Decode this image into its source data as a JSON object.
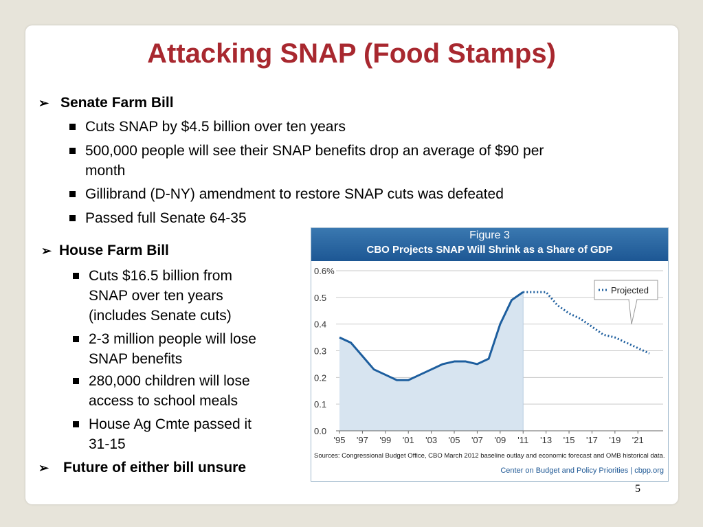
{
  "slide": {
    "title": "Attacking SNAP (Food Stamps)",
    "page_number": "5",
    "senate": {
      "heading": "Senate Farm Bill",
      "items": [
        "Cuts SNAP by $4.5 billion over ten years",
        "500,000 people will see their SNAP benefits drop an average of $90 per",
        "month",
        "Gillibrand (D-NY) amendment to restore SNAP cuts was defeated",
        "Passed full Senate 64-35"
      ]
    },
    "house": {
      "heading": "House Farm Bill",
      "items": [
        [
          "Cuts $16.5 billion from",
          "SNAP over ten years",
          "(includes Senate cuts)"
        ],
        [
          "2-3 million people will lose",
          "SNAP benefits"
        ],
        [
          "280,000 children will lose",
          "access to school meals"
        ],
        [
          "House Ag Cmte passed it",
          "31-15"
        ]
      ]
    },
    "future": "Future of either bill unsure"
  },
  "figure": {
    "label": "Figure 3",
    "source": "Sources: Congressional Budget Office, CBO March 2012 baseline outlay and economic forecast and OMB historical data.",
    "credit": "Center on Budget and Policy Priorities | cbpp.org"
  },
  "chart_data": {
    "type": "line",
    "title": "CBO Projects SNAP Will Shrink as a Share of GDP",
    "ylim": [
      0,
      0.6
    ],
    "yticks": [
      "0.6%",
      "0.5",
      "0.4",
      "0.3",
      "0.2",
      "0.1",
      "0.0"
    ],
    "xticks": [
      "'95",
      "'97",
      "'99",
      "'01",
      "'03",
      "'05",
      "'07",
      "'09",
      "'11",
      "'13",
      "'15",
      "'17",
      "'19",
      "'21"
    ],
    "legend": "Projected",
    "series": [
      {
        "style": "actual",
        "x": [
          1995,
          1996,
          1997,
          1998,
          1999,
          2000,
          2001,
          2002,
          2003,
          2004,
          2005,
          2006,
          2007,
          2008,
          2009,
          2010,
          2011
        ],
        "y": [
          0.35,
          0.33,
          0.28,
          0.23,
          0.21,
          0.19,
          0.19,
          0.21,
          0.23,
          0.25,
          0.26,
          0.26,
          0.25,
          0.27,
          0.4,
          0.49,
          0.52
        ]
      },
      {
        "name": "Projected",
        "style": "projected",
        "x": [
          2011,
          2012,
          2013,
          2014,
          2015,
          2016,
          2017,
          2018,
          2019,
          2020,
          2021,
          2022
        ],
        "y": [
          0.52,
          0.52,
          0.52,
          0.47,
          0.44,
          0.42,
          0.39,
          0.36,
          0.35,
          0.33,
          0.31,
          0.29
        ]
      }
    ],
    "colors": {
      "line": "#1d5e9e",
      "fill": "#d7e4f0",
      "grid": "#c9c9c9"
    }
  }
}
